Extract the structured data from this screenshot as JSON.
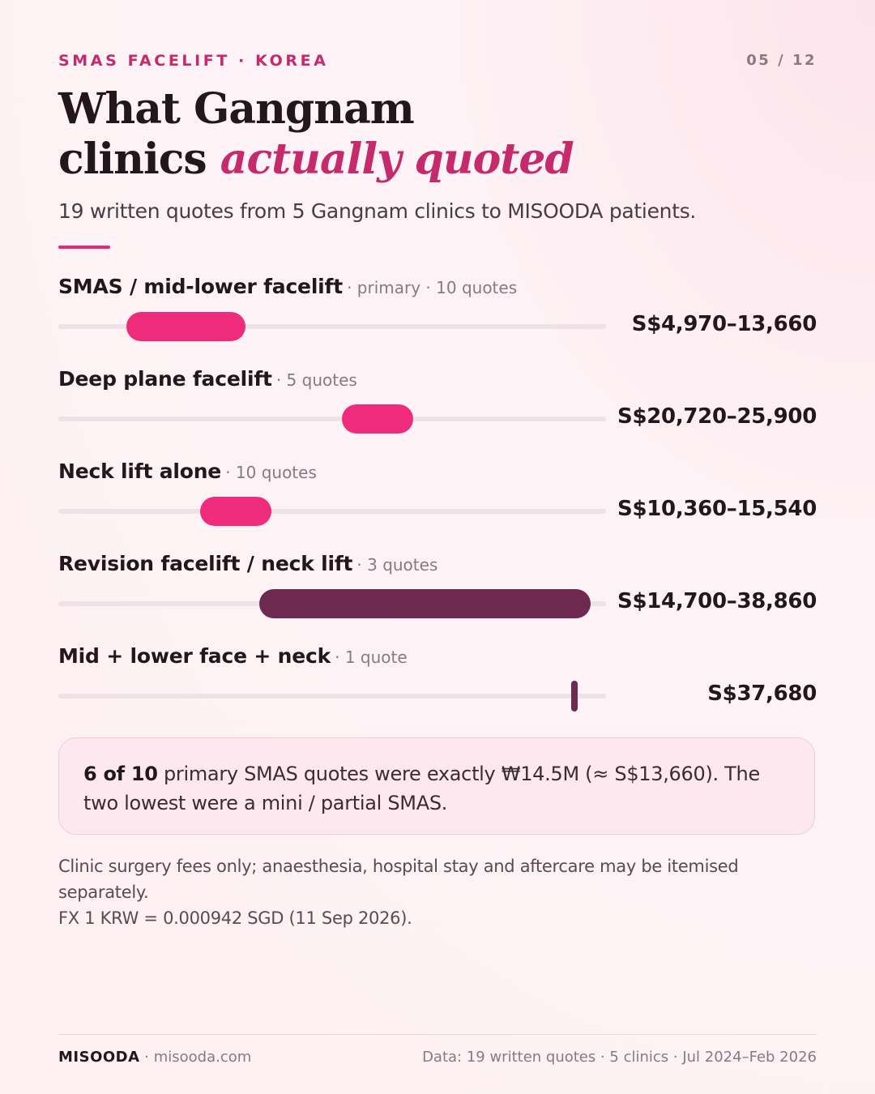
{
  "header": {
    "kicker": "SMAS FACELIFT · KOREA",
    "page": "05 / 12",
    "title_line1": "What Gangnam",
    "title_line2_plain": "clinics ",
    "title_line2_accent": "actually quoted",
    "subtitle": "19 written quotes from 5 Gangnam clinics to MISOODA patients."
  },
  "chart_data": {
    "type": "bar",
    "orientation": "horizontal range",
    "unit": "S$",
    "xlim": [
      0,
      40000
    ],
    "grid": false,
    "series": [
      {
        "name": "SMAS / mid-lower facelift",
        "meta": "· primary · 10 quotes",
        "min": 4970,
        "max": 13660,
        "price_label": "S$4,970–13,660",
        "color": "#ef2c7c"
      },
      {
        "name": "Deep plane facelift",
        "meta": "· 5 quotes",
        "min": 20720,
        "max": 25900,
        "price_label": "S$20,720–25,900",
        "color": "#ef2c7c"
      },
      {
        "name": "Neck lift alone",
        "meta": "· 10 quotes",
        "min": 10360,
        "max": 15540,
        "price_label": "S$10,360–15,540",
        "color": "#ef2c7c"
      },
      {
        "name": "Revision facelift / neck lift",
        "meta": "· 3 quotes",
        "min": 14700,
        "max": 38860,
        "price_label": "S$14,700–38,860",
        "color": "#6e2a4e"
      },
      {
        "name": "Mid + lower face + neck",
        "meta": "· 1 quote",
        "min": 37680,
        "max": 37680,
        "price_label": "S$37,680",
        "color": "#6e2a4e"
      }
    ]
  },
  "callout": {
    "bold": "6 of 10",
    "text": " primary SMAS quotes were exactly ₩14.5M (≈ S$13,660). The two lowest were a mini / partial SMAS."
  },
  "footnote": {
    "line1": "Clinic surgery fees only; anaesthesia, hospital stay and aftercare may be itemised separately.",
    "line2": "FX 1 KRW = 0.000942 SGD (11 Sep 2026)."
  },
  "footer": {
    "brand": "MISOODA",
    "site": " · misooda.com",
    "source": "Data: 19 written quotes · 5 clinics · Jul 2024–Feb 2026"
  },
  "colors": {
    "accent": "#c42a6c",
    "bar_pink": "#ef2c7c",
    "bar_plum": "#6e2a4e",
    "track": "#efe2e6"
  }
}
